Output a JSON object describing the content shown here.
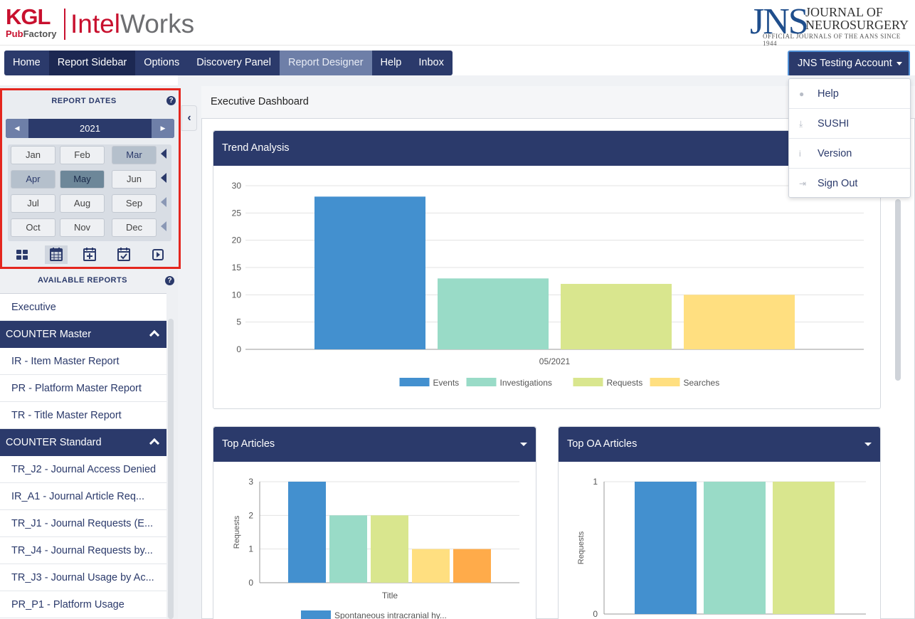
{
  "header": {
    "kgl": "KGL",
    "pub_a": "Pub",
    "pub_b": "Factory",
    "intel_a": "Intel",
    "intel_b": "Works",
    "jns_letters": "JNS",
    "jns_line1": "JOURNAL OF",
    "jns_line2": "NEUROSURGERY",
    "jns_line3": "OFFICIAL JOURNALS OF THE AANS SINCE 1944"
  },
  "nav": {
    "items": [
      {
        "label": "Home"
      },
      {
        "label": "Report Sidebar"
      },
      {
        "label": "Options"
      },
      {
        "label": "Discovery Panel"
      },
      {
        "label": "Report Designer"
      },
      {
        "label": "Help"
      },
      {
        "label": "Inbox"
      }
    ]
  },
  "account": {
    "label": "JNS Testing Account",
    "menu": [
      {
        "label": "Help",
        "icon": "question-icon"
      },
      {
        "label": "SUSHI",
        "icon": "download-icon"
      },
      {
        "label": "Version",
        "icon": "info-icon"
      },
      {
        "label": "Sign Out",
        "icon": "sign-out-icon"
      }
    ]
  },
  "report_dates": {
    "title": "REPORT DATES",
    "help": "?",
    "year": "2021",
    "months": [
      "Jan",
      "Feb",
      "Mar",
      "Apr",
      "May",
      "Jun",
      "Jul",
      "Aug",
      "Sep",
      "Oct",
      "Nov",
      "Dec"
    ],
    "selected_months": [
      "Mar",
      "Apr",
      "May"
    ],
    "current_month": "May",
    "icons": [
      "grid-icon",
      "calendar-icon",
      "calendar-plus-icon",
      "calendar-check-icon",
      "play-icon"
    ]
  },
  "available_reports": {
    "title": "AVAILABLE REPORTS",
    "help": "?",
    "executive": "Executive",
    "counter_master": {
      "label": "COUNTER Master",
      "items": [
        "IR - Item Master Report",
        "PR - Platform Master Report",
        "TR - Title Master Report"
      ]
    },
    "counter_standard": {
      "label": "COUNTER Standard",
      "items": [
        "TR_J2 - Journal Access Denied",
        "IR_A1 - Journal Article Req...",
        "TR_J1 - Journal Requests (E...",
        "TR_J4 - Journal Requests by...",
        "TR_J3 - Journal Usage by Ac...",
        "PR_P1 - Platform Usage"
      ]
    }
  },
  "main": {
    "title": "Executive Dashboard",
    "trend_title": "Trend Analysis",
    "top_articles_title": "Top Articles",
    "top_oa_title": "Top OA Articles"
  },
  "colors": {
    "navy": "#2b3a6b",
    "blue": "#4390cf",
    "teal": "#99dbc7",
    "lime": "#d9e68e",
    "yellow": "#ffdf80",
    "orange": "#ffab4a"
  },
  "chart_data": [
    {
      "type": "bar",
      "title": "Trend Analysis",
      "categories": [
        "05/2021"
      ],
      "series": [
        {
          "name": "Events",
          "values": [
            28
          ]
        },
        {
          "name": "Investigations",
          "values": [
            13
          ]
        },
        {
          "name": "Requests",
          "values": [
            12
          ]
        },
        {
          "name": "Searches",
          "values": [
            10
          ]
        }
      ],
      "ylim": [
        0,
        30
      ],
      "yticks": [
        0,
        5,
        10,
        15,
        20,
        25,
        30
      ],
      "legend": "bottom",
      "grid": true
    },
    {
      "type": "bar",
      "title": "Top Articles",
      "xlabel": "Title",
      "ylabel": "Requests",
      "ylim": [
        0,
        3
      ],
      "yticks": [
        0,
        1,
        2,
        3
      ],
      "values": [
        3,
        2,
        2,
        1,
        1
      ],
      "legend_first": "Spontaneous intracranial hy...",
      "grid": true
    },
    {
      "type": "bar",
      "title": "Top OA Articles",
      "ylabel": "Requests",
      "ylim": [
        0,
        1
      ],
      "yticks": [
        0,
        1
      ],
      "values": [
        1,
        1,
        1
      ],
      "grid": true
    }
  ]
}
